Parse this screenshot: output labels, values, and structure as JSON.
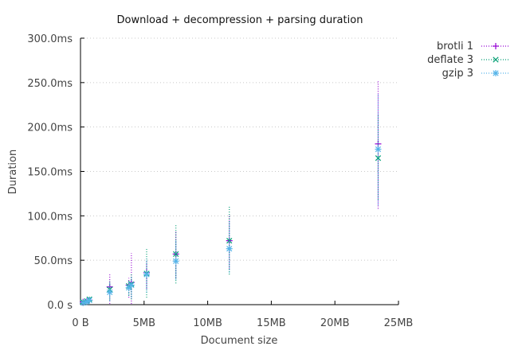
{
  "chart_data": {
    "type": "scatter",
    "title": "Download + decompression + parsing duration",
    "xlabel": "Document size",
    "ylabel": "Duration",
    "xlim": [
      0,
      25
    ],
    "ylim": [
      0,
      300
    ],
    "x_unit": "MB",
    "y_unit": "ms",
    "xticks": [
      0,
      5,
      10,
      15,
      20,
      25
    ],
    "xtick_labels": [
      "0 B",
      "5MB",
      "10MB",
      "15MB",
      "20MB",
      "25MB"
    ],
    "yticks": [
      0,
      50,
      100,
      150,
      200,
      250,
      300
    ],
    "ytick_labels": [
      "0.0 s",
      "50.0ms",
      "100.0ms",
      "150.0ms",
      "200.0ms",
      "250.0ms",
      "300.0ms"
    ],
    "grid": true,
    "legend_position": "top-right",
    "error_bars": "vertical",
    "series": [
      {
        "name": "brotli 1",
        "color": "#9400d3",
        "marker": "plus",
        "points": [
          {
            "x": 0.2,
            "y": 3,
            "low": 1,
            "high": 5
          },
          {
            "x": 0.5,
            "y": 4,
            "low": 2,
            "high": 6
          },
          {
            "x": 0.7,
            "y": 5,
            "low": 3,
            "high": 8
          },
          {
            "x": 2.3,
            "y": 20,
            "low": 1,
            "high": 34
          },
          {
            "x": 3.8,
            "y": 22,
            "low": 8,
            "high": 30
          },
          {
            "x": 4.0,
            "y": 25,
            "low": 1,
            "high": 58
          },
          {
            "x": 5.2,
            "y": 36,
            "low": 18,
            "high": 48
          },
          {
            "x": 7.5,
            "y": 57,
            "low": 30,
            "high": 82
          },
          {
            "x": 11.7,
            "y": 72,
            "low": 40,
            "high": 102
          },
          {
            "x": 23.4,
            "y": 181,
            "low": 108,
            "high": 253
          }
        ]
      },
      {
        "name": "deflate 3",
        "color": "#009e73",
        "marker": "cross",
        "points": [
          {
            "x": 0.2,
            "y": 3,
            "low": 1,
            "high": 5
          },
          {
            "x": 0.5,
            "y": 4,
            "low": 2,
            "high": 6
          },
          {
            "x": 0.7,
            "y": 6,
            "low": 3,
            "high": 9
          },
          {
            "x": 2.3,
            "y": 17,
            "low": 5,
            "high": 27
          },
          {
            "x": 3.8,
            "y": 21,
            "low": 10,
            "high": 28
          },
          {
            "x": 4.0,
            "y": 23,
            "low": 6,
            "high": 34
          },
          {
            "x": 5.2,
            "y": 35,
            "low": 8,
            "high": 63
          },
          {
            "x": 7.5,
            "y": 57,
            "low": 24,
            "high": 91
          },
          {
            "x": 11.7,
            "y": 72,
            "low": 34,
            "high": 111
          },
          {
            "x": 23.4,
            "y": 165,
            "low": 118,
            "high": 215
          }
        ]
      },
      {
        "name": "gzip 3",
        "color": "#56b4e9",
        "marker": "star",
        "points": [
          {
            "x": 0.2,
            "y": 2,
            "low": 1,
            "high": 4
          },
          {
            "x": 0.5,
            "y": 3,
            "low": 1,
            "high": 5
          },
          {
            "x": 0.7,
            "y": 5,
            "low": 3,
            "high": 8
          },
          {
            "x": 2.3,
            "y": 14,
            "low": 4,
            "high": 24
          },
          {
            "x": 3.8,
            "y": 19,
            "low": 11,
            "high": 26
          },
          {
            "x": 4.0,
            "y": 22,
            "low": 8,
            "high": 32
          },
          {
            "x": 5.2,
            "y": 34,
            "low": 14,
            "high": 52
          },
          {
            "x": 7.5,
            "y": 49,
            "low": 28,
            "high": 72
          },
          {
            "x": 11.7,
            "y": 63,
            "low": 36,
            "high": 94
          },
          {
            "x": 23.4,
            "y": 175,
            "low": 112,
            "high": 238
          }
        ]
      }
    ]
  }
}
